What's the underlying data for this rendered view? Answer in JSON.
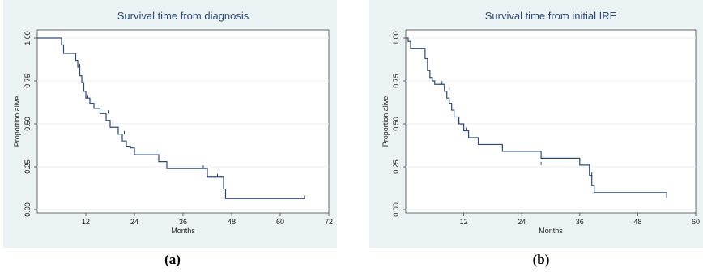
{
  "chart_data": [
    {
      "type": "line",
      "step": true,
      "title": "Survival time from diagnosis",
      "xlabel": "Months",
      "ylabel": "Proportion alive",
      "xlim": [
        0,
        72
      ],
      "ylim": [
        0,
        1
      ],
      "xticks": [
        "12",
        "24",
        "36",
        "48",
        "60",
        "72"
      ],
      "yticks": [
        "0.00",
        "0.25",
        "0.50",
        "0.75",
        "1.00"
      ],
      "grid": "horizontal",
      "caption": "(a)",
      "colors": {
        "line": "#2e4a73",
        "background": "#eaf2f3",
        "plot": "#ffffff"
      },
      "series": [
        {
          "x": [
            0,
            6,
            6.5,
            9.5,
            10,
            10.5,
            11,
            11.5,
            12,
            13,
            14,
            15.5,
            17,
            18,
            20,
            21,
            22,
            23,
            24,
            25,
            30,
            32,
            42,
            46,
            46.5,
            66
          ],
          "y": [
            1.0,
            0.96,
            0.91,
            0.87,
            0.83,
            0.78,
            0.74,
            0.69,
            0.65,
            0.62,
            0.59,
            0.56,
            0.52,
            0.48,
            0.44,
            0.4,
            0.37,
            0.36,
            0.32,
            0.32,
            0.28,
            0.24,
            0.19,
            0.12,
            0.065,
            0.08
          ],
          "censored": [
            {
              "x": 10.5,
              "y": 0.83
            },
            {
              "x": 12.5,
              "y": 0.65
            },
            {
              "x": 17.5,
              "y": 0.56
            },
            {
              "x": 21.5,
              "y": 0.44
            },
            {
              "x": 41,
              "y": 0.24
            },
            {
              "x": 44.5,
              "y": 0.19
            },
            {
              "x": 66,
              "y": 0.065
            }
          ]
        }
      ]
    },
    {
      "type": "line",
      "step": true,
      "title": "Survival time from initial IRE",
      "xlabel": "Months",
      "ylabel": "Proportion alive",
      "xlim": [
        0,
        60
      ],
      "ylim": [
        0,
        1
      ],
      "xticks": [
        "12",
        "24",
        "36",
        "48",
        "60"
      ],
      "yticks": [
        "0.00",
        "0.25",
        "0.50",
        "0.75",
        "1.00"
      ],
      "grid": "horizontal",
      "caption": "(b)",
      "colors": {
        "line": "#2e4a73",
        "background": "#eaf2f3",
        "plot": "#ffffff"
      },
      "series": [
        {
          "x": [
            0,
            0.5,
            1,
            4,
            4.5,
            5,
            5.5,
            6,
            8,
            8.5,
            9,
            9.5,
            10,
            11,
            12,
            13,
            15,
            20,
            28,
            36,
            38,
            38.5,
            39,
            54
          ],
          "y": [
            1.0,
            0.98,
            0.94,
            0.88,
            0.81,
            0.77,
            0.75,
            0.73,
            0.69,
            0.65,
            0.62,
            0.58,
            0.54,
            0.5,
            0.46,
            0.42,
            0.38,
            0.34,
            0.3,
            0.26,
            0.2,
            0.14,
            0.1,
            0.07
          ],
          "censored": [
            {
              "x": 7.5,
              "y": 0.73
            },
            {
              "x": 9,
              "y": 0.69
            },
            {
              "x": 11,
              "y": 0.5
            },
            {
              "x": 12.5,
              "y": 0.46
            },
            {
              "x": 28,
              "y": 0.26
            },
            {
              "x": 38.5,
              "y": 0.2
            },
            {
              "x": 54,
              "y": 0.07
            }
          ]
        }
      ]
    }
  ]
}
